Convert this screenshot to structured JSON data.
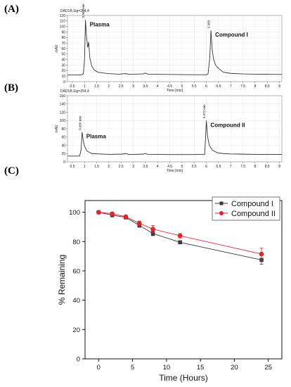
{
  "panels": {
    "a": "(A)",
    "b": "(B)",
    "c": "(C)"
  },
  "chart_data": [
    {
      "type": "line",
      "panel": "(A)",
      "title": "DAD1B,Sig=254,4",
      "ylabel": "mAU",
      "xlabel": "Time [min]",
      "xlim": [
        0.3,
        9.1
      ],
      "ylim": [
        0,
        120
      ],
      "xticks": [
        "0.5",
        "1",
        "1.5",
        "2",
        "2.5",
        "3",
        "3.5",
        "4",
        "4.5",
        "5",
        "5.5",
        "6",
        "6.5",
        "7",
        "7.5",
        "8",
        "8.5",
        "9"
      ],
      "yticks": [
        "0",
        "10",
        "20",
        "30",
        "40",
        "50",
        "60",
        "70",
        "80",
        "90",
        "100",
        "110",
        "120"
      ],
      "trace": [
        [
          0.3,
          12
        ],
        [
          0.85,
          12
        ],
        [
          0.95,
          14
        ],
        [
          1.0,
          40
        ],
        [
          1.04,
          112
        ],
        [
          1.08,
          82
        ],
        [
          1.13,
          62
        ],
        [
          1.17,
          72
        ],
        [
          1.22,
          42
        ],
        [
          1.3,
          28
        ],
        [
          1.4,
          21
        ],
        [
          1.55,
          17
        ],
        [
          1.7,
          16
        ],
        [
          2.0,
          14.5
        ],
        [
          2.4,
          13.5
        ],
        [
          2.7,
          14.5
        ],
        [
          2.8,
          13.5
        ],
        [
          3.0,
          13.5
        ],
        [
          3.4,
          14
        ],
        [
          3.5,
          15.5
        ],
        [
          3.6,
          13.5
        ],
        [
          4.5,
          13
        ],
        [
          5.5,
          12.5
        ],
        [
          6.0,
          12.5
        ],
        [
          6.07,
          14
        ],
        [
          6.14,
          42
        ],
        [
          6.19,
          93
        ],
        [
          6.24,
          58
        ],
        [
          6.3,
          40
        ],
        [
          6.38,
          30
        ],
        [
          6.5,
          24
        ],
        [
          6.7,
          17
        ],
        [
          7.0,
          15
        ],
        [
          7.5,
          14
        ],
        [
          8.0,
          13.5
        ],
        [
          9.1,
          13
        ]
      ],
      "peaks": [
        {
          "time_label": "0.964 min",
          "name": "Plasma",
          "x": 1.04,
          "y": 112
        },
        {
          "time_label": "5.989",
          "name": "Compound I",
          "x": 6.19,
          "y": 93
        }
      ]
    },
    {
      "type": "line",
      "panel": "(B)",
      "title": "DAD1B,Sig=254,4",
      "ylabel": "mAU",
      "xlabel": "Time [min]",
      "xlim": [
        0.3,
        9.1
      ],
      "ylim": [
        0,
        160
      ],
      "xticks": [
        "0.5",
        "1",
        "1.5",
        "2",
        "2.5",
        "3",
        "3.5",
        "4",
        "4.5",
        "5",
        "5.5",
        "6",
        "6.5",
        "7",
        "7.5",
        "8",
        "8.5",
        "9"
      ],
      "yticks": [
        "0",
        "20",
        "40",
        "60",
        "80",
        "100",
        "120",
        "140",
        "160"
      ],
      "trace": [
        [
          0.3,
          14
        ],
        [
          0.8,
          14
        ],
        [
          0.86,
          30
        ],
        [
          0.9,
          72
        ],
        [
          0.95,
          50
        ],
        [
          1.0,
          38
        ],
        [
          1.1,
          26
        ],
        [
          1.3,
          20
        ],
        [
          1.6,
          19
        ],
        [
          2.0,
          18
        ],
        [
          2.5,
          18.5
        ],
        [
          2.7,
          20
        ],
        [
          2.8,
          18
        ],
        [
          3.0,
          18
        ],
        [
          3.4,
          18.5
        ],
        [
          3.5,
          20
        ],
        [
          3.6,
          18
        ],
        [
          4.5,
          17.5
        ],
        [
          5.5,
          17.5
        ],
        [
          5.93,
          18
        ],
        [
          5.97,
          60
        ],
        [
          6.0,
          100
        ],
        [
          6.05,
          62
        ],
        [
          6.12,
          40
        ],
        [
          6.25,
          28
        ],
        [
          6.45,
          22
        ],
        [
          6.7,
          20
        ],
        [
          7.0,
          19
        ],
        [
          7.5,
          18.5
        ],
        [
          8.0,
          18
        ],
        [
          9.1,
          18
        ]
      ],
      "peaks": [
        {
          "time_label": "0.956 min",
          "name": "Plasma",
          "x": 0.9,
          "y": 72
        },
        {
          "time_label": "5.972 min",
          "name": "Compound II",
          "x": 6.0,
          "y": 100
        }
      ]
    },
    {
      "type": "line",
      "panel": "(C)",
      "xlabel": "Time (Hours)",
      "ylabel": "% Remaining",
      "xlim": [
        -2,
        27
      ],
      "ylim": [
        0,
        108
      ],
      "xticks": [
        0,
        5,
        10,
        15,
        20,
        25
      ],
      "yticks": [
        0,
        20,
        40,
        60,
        80,
        100
      ],
      "x": [
        0,
        2,
        4,
        6,
        8,
        12,
        24
      ],
      "series": [
        {
          "name": "Compound I",
          "color": "#3a3a3a",
          "marker": "square",
          "values": [
            100,
            98,
            96.5,
            91,
            85.5,
            79.5,
            67.5
          ],
          "errors": [
            0.5,
            0.8,
            0.8,
            1.2,
            1.5,
            1.0,
            3.0
          ]
        },
        {
          "name": "Compound II",
          "color": "#e8212a",
          "marker": "circle",
          "values": [
            100,
            99,
            97,
            92.5,
            88.5,
            84,
            71.5
          ],
          "errors": [
            0.5,
            0.7,
            0.8,
            1.5,
            2.5,
            1.5,
            4.0
          ]
        }
      ],
      "legend": "top-right"
    }
  ]
}
